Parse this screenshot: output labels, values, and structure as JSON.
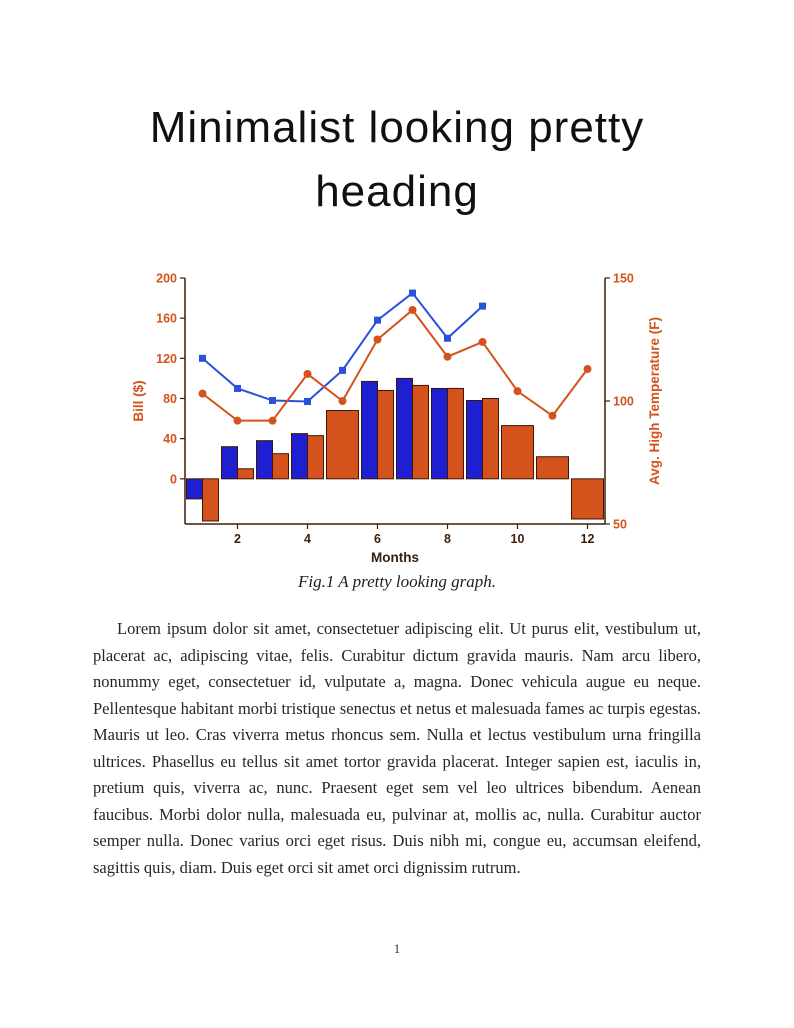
{
  "page": {
    "heading": "Minimalist looking pretty heading",
    "figure_caption": "Fig.1 A pretty looking graph.",
    "body_paragraph": "Lorem ipsum dolor sit amet, consectetuer adipiscing elit. Ut purus elit, vestibulum ut, placerat ac, adipiscing vitae, felis. Curabitur dictum gravida mauris. Nam arcu libero, nonummy eget, consectetuer id, vulputate a, magna. Donec vehicula augue eu neque. Pellentesque habitant morbi tristique senectus et netus et malesuada fames ac turpis egestas. Mauris ut leo. Cras viverra metus rhoncus sem. Nulla et lectus vestibulum urna fringilla ultrices. Phasellus eu tellus sit amet tortor gravida placerat. Integer sapien est, iaculis in, pretium quis, viverra ac, nunc. Praesent eget sem vel leo ultrices bibendum. Aenean faucibus. Morbi dolor nulla, malesuada eu, pulvinar at, mollis ac, nulla. Curabitur auctor semper nulla. Donec varius orci eget risus. Duis nibh mi, congue eu, accumsan eleifend, sagittis quis, diam. Duis eget orci sit amet orci dignissim rutrum.",
    "page_number": "1"
  },
  "chart_data": {
    "type": "bar",
    "subtype": "combo-bar-line-dual-axis",
    "title": "",
    "xlabel": "Months",
    "ylabel_left": "Bill ($)",
    "ylabel_right": "Avg. High Temperature (F)",
    "x": [
      1,
      2,
      3,
      4,
      5,
      6,
      7,
      8,
      9,
      10,
      11,
      12
    ],
    "xticks": [
      2,
      4,
      6,
      8,
      10,
      12
    ],
    "xlim": [
      0.5,
      12.5
    ],
    "ylim_left": [
      -45,
      200
    ],
    "yticks_left": [
      0,
      40,
      80,
      120,
      160,
      200
    ],
    "ylim_right": [
      50,
      150
    ],
    "yticks_right": [
      50,
      100,
      150
    ],
    "grid": false,
    "legend": "none",
    "colors": {
      "bar_blue": "#1f1fd2",
      "line_blue": "#2a50dc",
      "orange": "#d4531c",
      "bar_edge": "#401505",
      "axis_dark": "#3c1e08"
    },
    "series": [
      {
        "name": "blue-bars",
        "type": "bar",
        "axis": "left",
        "color": "bar_blue",
        "values": [
          -20,
          32,
          38,
          45,
          null,
          97,
          100,
          90,
          78,
          null,
          null,
          null
        ]
      },
      {
        "name": "orange-bars",
        "type": "bar",
        "axis": "left",
        "color": "orange",
        "values": [
          -42,
          10,
          25,
          43,
          68,
          88,
          93,
          90,
          80,
          53,
          22,
          -40
        ]
      },
      {
        "name": "blue-line-squares",
        "type": "line",
        "axis": "left",
        "marker": "square",
        "color": "line_blue",
        "values": [
          120,
          90,
          78,
          77,
          108,
          158,
          185,
          140,
          172,
          null,
          null,
          null
        ]
      },
      {
        "name": "orange-line-circles",
        "type": "line",
        "axis": "right",
        "marker": "circle",
        "color": "orange",
        "values": [
          103,
          92,
          92,
          111,
          100,
          125,
          137,
          118,
          124,
          104,
          94,
          113
        ]
      }
    ]
  }
}
